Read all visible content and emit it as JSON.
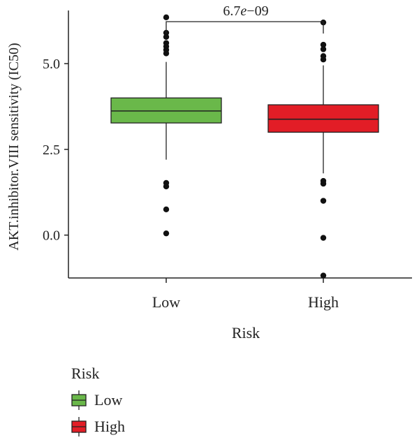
{
  "chart_data": {
    "type": "box",
    "xlabel": "Risk",
    "ylabel": "AKT.inhibitor.VIII sensitivity (IC50)",
    "ylim": [
      -1.25,
      6.55
    ],
    "yticks": [
      0.0,
      2.5,
      5.0
    ],
    "ytick_labels": [
      "0.0",
      "2.5",
      "5.0"
    ],
    "categories": [
      "Low",
      "High"
    ],
    "series": [
      {
        "name": "Low",
        "color": "#6ab84a",
        "q1": 3.27,
        "median": 3.62,
        "q3": 4.0,
        "whisker_low": 2.2,
        "whisker_high": 5.05,
        "outliers": [
          6.35,
          5.9,
          5.78,
          5.6,
          5.5,
          5.4,
          5.3,
          1.52,
          1.42,
          0.75,
          0.05
        ]
      },
      {
        "name": "High",
        "color": "#e21d26",
        "q1": 3.0,
        "median": 3.38,
        "q3": 3.8,
        "whisker_low": 1.8,
        "whisker_high": 4.95,
        "outliers": [
          6.2,
          5.55,
          5.42,
          5.22,
          5.12,
          1.58,
          1.5,
          1.0,
          -0.08,
          -1.18
        ]
      }
    ],
    "annotation": {
      "text_prefix": "6.7",
      "text_italic": "e",
      "text_suffix": "−09"
    },
    "legend": {
      "title": "Risk",
      "position": "bottom-left",
      "items": [
        "Low",
        "High"
      ]
    }
  }
}
